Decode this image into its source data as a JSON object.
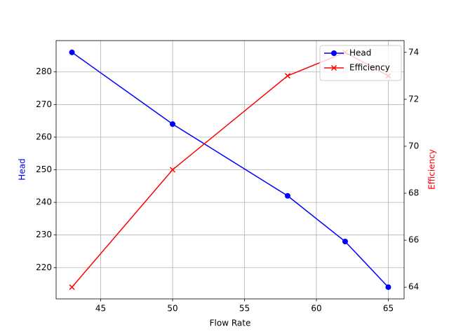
{
  "chart_data": {
    "type": "line",
    "x": [
      43,
      50,
      58,
      62,
      65
    ],
    "xlabel": "Flow Rate",
    "ylabel": "Head",
    "y2label": "Efficiency",
    "xlim": [
      41.9,
      66.1
    ],
    "xticks": [
      45,
      50,
      55,
      60,
      65
    ],
    "ylim": [
      210.4,
      289.6
    ],
    "yticks": [
      220,
      230,
      240,
      250,
      260,
      270,
      280
    ],
    "y2lim": [
      63.5,
      74.5
    ],
    "y2ticks": [
      64,
      66,
      68,
      70,
      72,
      74
    ],
    "grid": true,
    "legend": "upper right",
    "series": [
      {
        "name": "Head",
        "color": "blue",
        "marker": "o",
        "values": [
          286,
          264,
          242,
          228,
          214
        ]
      },
      {
        "name": "Efficiency",
        "color": "red",
        "marker": "x",
        "axis": "y2",
        "values": [
          64,
          69,
          73,
          74,
          73
        ]
      }
    ]
  }
}
